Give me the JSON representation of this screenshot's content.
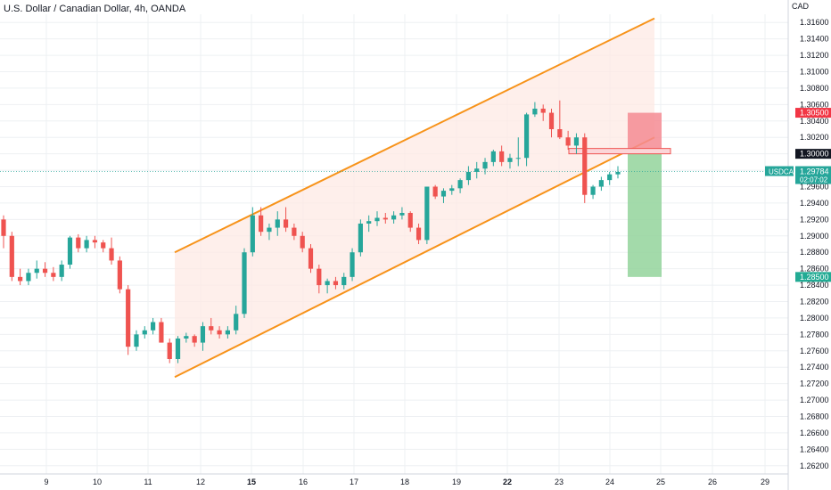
{
  "title": "U.S. Dollar / Canadian Dollar, 4h, OANDA",
  "chart_data": {
    "type": "candlestick",
    "title": "U.S. Dollar / Canadian Dollar, 4h, OANDA",
    "currency": "CAD",
    "ylim": [
      1.261,
      1.318
    ],
    "y_ticks": [
      "1.31600",
      "1.31400",
      "1.31200",
      "1.31000",
      "1.30800",
      "1.30600",
      "1.30400",
      "1.30200",
      "1.30000",
      "1.29800",
      "1.29600",
      "1.29400",
      "1.29200",
      "1.29000",
      "1.28800",
      "1.28600",
      "1.28400",
      "1.28200",
      "1.28000",
      "1.27800",
      "1.27600",
      "1.27400",
      "1.27200",
      "1.27000",
      "1.26800",
      "1.26600",
      "1.26400",
      "1.26200"
    ],
    "x_ticks": [
      {
        "label": "9",
        "bold": false
      },
      {
        "label": "10",
        "bold": false
      },
      {
        "label": "11",
        "bold": false
      },
      {
        "label": "12",
        "bold": false
      },
      {
        "label": "15",
        "bold": true
      },
      {
        "label": "16",
        "bold": false
      },
      {
        "label": "17",
        "bold": false
      },
      {
        "label": "18",
        "bold": false
      },
      {
        "label": "19",
        "bold": false
      },
      {
        "label": "22",
        "bold": true
      },
      {
        "label": "23",
        "bold": false
      },
      {
        "label": "24",
        "bold": false
      },
      {
        "label": "25",
        "bold": false
      },
      {
        "label": "26",
        "bold": false
      },
      {
        "label": "29",
        "bold": false
      }
    ],
    "candles": [
      [
        1.292,
        1.2925,
        1.2885,
        1.29
      ],
      [
        1.29,
        1.2905,
        1.2845,
        1.285
      ],
      [
        1.285,
        1.286,
        1.284,
        1.2845
      ],
      [
        1.2845,
        1.286,
        1.284,
        1.2855
      ],
      [
        1.2855,
        1.287,
        1.2848,
        1.286
      ],
      [
        1.286,
        1.2868,
        1.285,
        1.2855
      ],
      [
        1.2855,
        1.2862,
        1.2845,
        1.285
      ],
      [
        1.285,
        1.287,
        1.2845,
        1.2865
      ],
      [
        1.2865,
        1.29,
        1.286,
        1.2898
      ],
      [
        1.2898,
        1.2902,
        1.288,
        1.2885
      ],
      [
        1.2885,
        1.29,
        1.288,
        1.2895
      ],
      [
        1.2895,
        1.29,
        1.2885,
        1.2892
      ],
      [
        1.2892,
        1.2895,
        1.288,
        1.2885
      ],
      [
        1.2885,
        1.2898,
        1.2865,
        1.287
      ],
      [
        1.287,
        1.2875,
        1.283,
        1.2835
      ],
      [
        1.2835,
        1.284,
        1.2755,
        1.2765
      ],
      [
        1.2765,
        1.2785,
        1.276,
        1.278
      ],
      [
        1.278,
        1.279,
        1.2775,
        1.2785
      ],
      [
        1.2785,
        1.28,
        1.278,
        1.2795
      ],
      [
        1.2795,
        1.28,
        1.277,
        1.277
      ],
      [
        1.277,
        1.2775,
        1.2745,
        1.275
      ],
      [
        1.275,
        1.2778,
        1.2745,
        1.2775
      ],
      [
        1.2775,
        1.2782,
        1.277,
        1.2778
      ],
      [
        1.2778,
        1.278,
        1.2765,
        1.277
      ],
      [
        1.277,
        1.2795,
        1.276,
        1.279
      ],
      [
        1.279,
        1.28,
        1.278,
        1.2785
      ],
      [
        1.2785,
        1.279,
        1.2775,
        1.278
      ],
      [
        1.278,
        1.279,
        1.2775,
        1.2785
      ],
      [
        1.2785,
        1.2815,
        1.278,
        1.2805
      ],
      [
        1.2805,
        1.2885,
        1.28,
        1.288
      ],
      [
        1.288,
        1.2935,
        1.2875,
        1.2925
      ],
      [
        1.2925,
        1.2935,
        1.29,
        1.2905
      ],
      [
        1.2905,
        1.2915,
        1.2895,
        1.291
      ],
      [
        1.291,
        1.293,
        1.29,
        1.292
      ],
      [
        1.292,
        1.2935,
        1.2905,
        1.291
      ],
      [
        1.291,
        1.2915,
        1.2895,
        1.29
      ],
      [
        1.29,
        1.2905,
        1.288,
        1.2885
      ],
      [
        1.2885,
        1.289,
        1.2855,
        1.286
      ],
      [
        1.286,
        1.2865,
        1.283,
        1.284
      ],
      [
        1.284,
        1.2848,
        1.283,
        1.2845
      ],
      [
        1.2845,
        1.285,
        1.2835,
        1.284
      ],
      [
        1.284,
        1.2855,
        1.2835,
        1.285
      ],
      [
        1.285,
        1.2885,
        1.2845,
        1.288
      ],
      [
        1.288,
        1.292,
        1.2875,
        1.2915
      ],
      [
        1.2915,
        1.2925,
        1.2905,
        1.2918
      ],
      [
        1.2918,
        1.293,
        1.2912,
        1.2922
      ],
      [
        1.2922,
        1.2928,
        1.2915,
        1.292
      ],
      [
        1.292,
        1.293,
        1.2915,
        1.2925
      ],
      [
        1.2925,
        1.2935,
        1.292,
        1.2928
      ],
      [
        1.2928,
        1.293,
        1.2905,
        1.291
      ],
      [
        1.291,
        1.2915,
        1.289,
        1.2895
      ],
      [
        1.2895,
        1.296,
        1.289,
        1.296
      ],
      [
        1.296,
        1.2962,
        1.2945,
        1.2948
      ],
      [
        1.2948,
        1.2958,
        1.294,
        1.2955
      ],
      [
        1.2955,
        1.2962,
        1.295,
        1.2958
      ],
      [
        1.2958,
        1.297,
        1.2952,
        1.2968
      ],
      [
        1.2968,
        1.2985,
        1.2962,
        1.2978
      ],
      [
        1.2978,
        1.299,
        1.297,
        1.2982
      ],
      [
        1.2982,
        1.2995,
        1.2975,
        1.299
      ],
      [
        1.299,
        1.3005,
        1.2985,
        1.3003
      ],
      [
        1.3003,
        1.301,
        1.2985,
        1.299
      ],
      [
        1.299,
        1.3,
        1.2982,
        1.2995
      ],
      [
        1.2995,
        1.302,
        1.2985,
        1.2995
      ],
      [
        1.2995,
        1.305,
        1.2985,
        1.3048
      ],
      [
        1.3048,
        1.3063,
        1.3045,
        1.3055
      ],
      [
        1.3055,
        1.306,
        1.304,
        1.305
      ],
      [
        1.305,
        1.3055,
        1.302,
        1.303
      ],
      [
        1.303,
        1.3065,
        1.3018,
        1.302
      ],
      [
        1.302,
        1.3028,
        1.3005,
        1.301
      ],
      [
        1.301,
        1.3025,
        1.3,
        1.302
      ],
      [
        1.302,
        1.3025,
        1.294,
        1.295
      ],
      [
        1.295,
        1.2962,
        1.2945,
        1.296
      ],
      [
        1.296,
        1.2972,
        1.2955,
        1.2968
      ],
      [
        1.2968,
        1.2978,
        1.2962,
        1.2975
      ],
      [
        1.2975,
        1.2985,
        1.297,
        1.2978
      ]
    ],
    "channel": {
      "upper": [
        [
          1.288
        ],
        [
          1.3165
        ]
      ],
      "lower": [
        [
          1.2728
        ],
        [
          1.302
        ]
      ]
    },
    "position": {
      "stop": 1.305,
      "entry": 1.3,
      "target": 1.285
    },
    "labels": {
      "stop": "1.30500",
      "entry": "1.30000",
      "target": "1.28500",
      "symbol": "USDCAD",
      "price": "1.29784",
      "countdown": "02:07:02"
    },
    "current_price": 1.29784,
    "colors": {
      "up": "#26a69a",
      "down": "#ef5350",
      "channel": "#f7931a",
      "channel_fill": "#fde9e4",
      "stop_zone": "#f48b93",
      "target_zone": "#93d49b",
      "grid": "#eef0f3"
    }
  }
}
